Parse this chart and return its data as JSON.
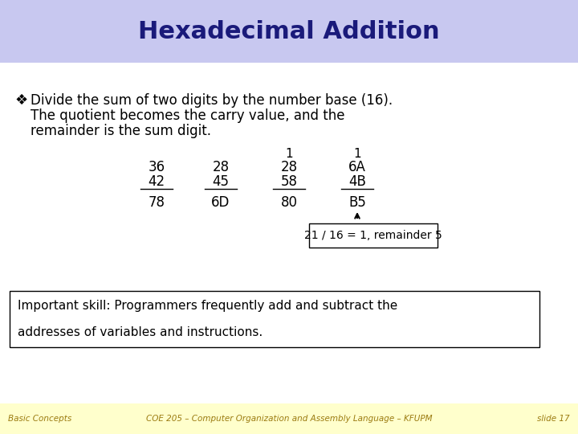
{
  "title": "Hexadecimal Addition",
  "title_bg": "#c8c8f0",
  "title_color": "#1a1a7a",
  "slide_bg": "#ffffff",
  "footer_bg": "#ffffcc",
  "bullet_text_line1": "Divide the sum of two digits by the number base (16).",
  "bullet_text_line2": "The quotient becomes the carry value, and the",
  "bullet_text_line3": "remainder is the sum digit.",
  "bullet_symbol": "❖",
  "col1": [
    "36",
    "42",
    "78"
  ],
  "col2": [
    "28",
    "45",
    "6D"
  ],
  "col3": [
    "28",
    "58",
    "80"
  ],
  "col4": [
    "6A",
    "4B",
    "B5"
  ],
  "carry3": "1",
  "carry4": "1",
  "annotation_text": "21 / 16 = 1, remainder 5",
  "important_line1": "Important skill: Programmers frequently add and subtract the",
  "important_line2": "addresses of variables and instructions.",
  "footer_left": "Basic Concepts",
  "footer_center": "COE 205 – Computer Organization and Assembly Language – KFUPM",
  "footer_right": "slide 17",
  "font_color": "#000000",
  "font_color_footer": "#9b7b10"
}
